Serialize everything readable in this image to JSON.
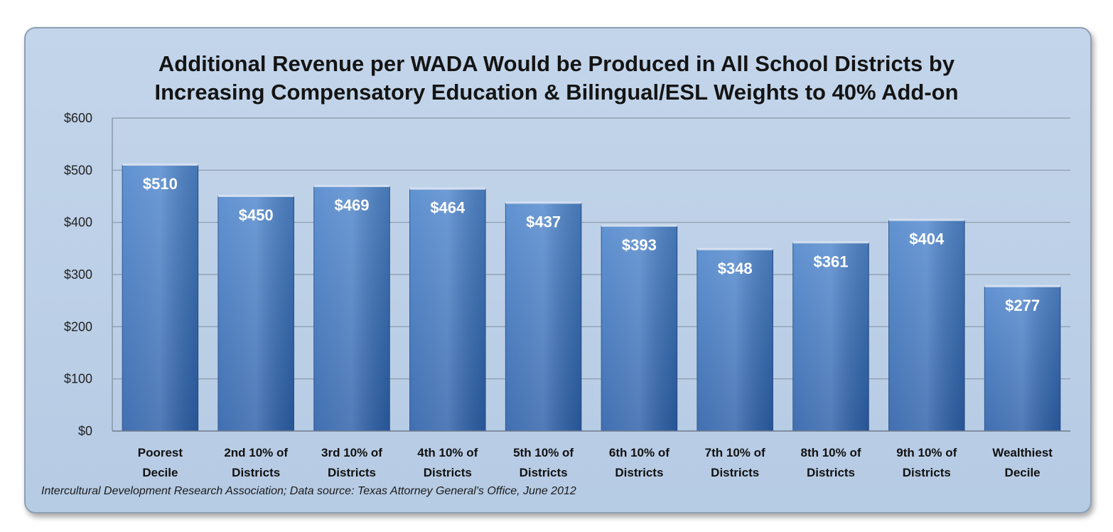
{
  "title_line1": "Additional Revenue per WADA Would be Produced in All School Districts by",
  "title_line2": "Increasing Compensatory Education & Bilingual/ESL Weights to 40% Add-on",
  "source": "Intercultural Development Research Association; Data source: Texas Attorney General's Office, June 2012",
  "colors": {
    "bar_top": "#4f86cc",
    "bar_bottom": "#2c5fa8",
    "panel": "#bfd2e8"
  },
  "chart_data": {
    "type": "bar",
    "title": "Additional Revenue per WADA Would be Produced in All School Districts by Increasing Compensatory Education & Bilingual/ESL Weights to 40% Add-on",
    "categories": [
      [
        "Poorest",
        "Decile"
      ],
      [
        "2nd 10% of",
        "Districts"
      ],
      [
        "3rd 10% of",
        "Districts"
      ],
      [
        "4th 10% of",
        "Districts"
      ],
      [
        "5th 10% of",
        "Districts"
      ],
      [
        "6th 10% of",
        "Districts"
      ],
      [
        "7th 10% of",
        "Districts"
      ],
      [
        "8th 10% of",
        "Districts"
      ],
      [
        "9th 10% of",
        "Districts"
      ],
      [
        "Wealthiest",
        "Decile"
      ]
    ],
    "values": [
      510,
      450,
      469,
      464,
      437,
      393,
      348,
      361,
      404,
      277
    ],
    "data_labels": [
      "$510",
      "$450",
      "$469",
      "$464",
      "$437",
      "$393",
      "$348",
      "$361",
      "$404",
      "$277"
    ],
    "y_ticks": [
      "$0",
      "$100",
      "$200",
      "$300",
      "$400",
      "$500",
      "$600"
    ],
    "ylim": [
      0,
      600
    ],
    "grid": true,
    "legend": "none"
  }
}
